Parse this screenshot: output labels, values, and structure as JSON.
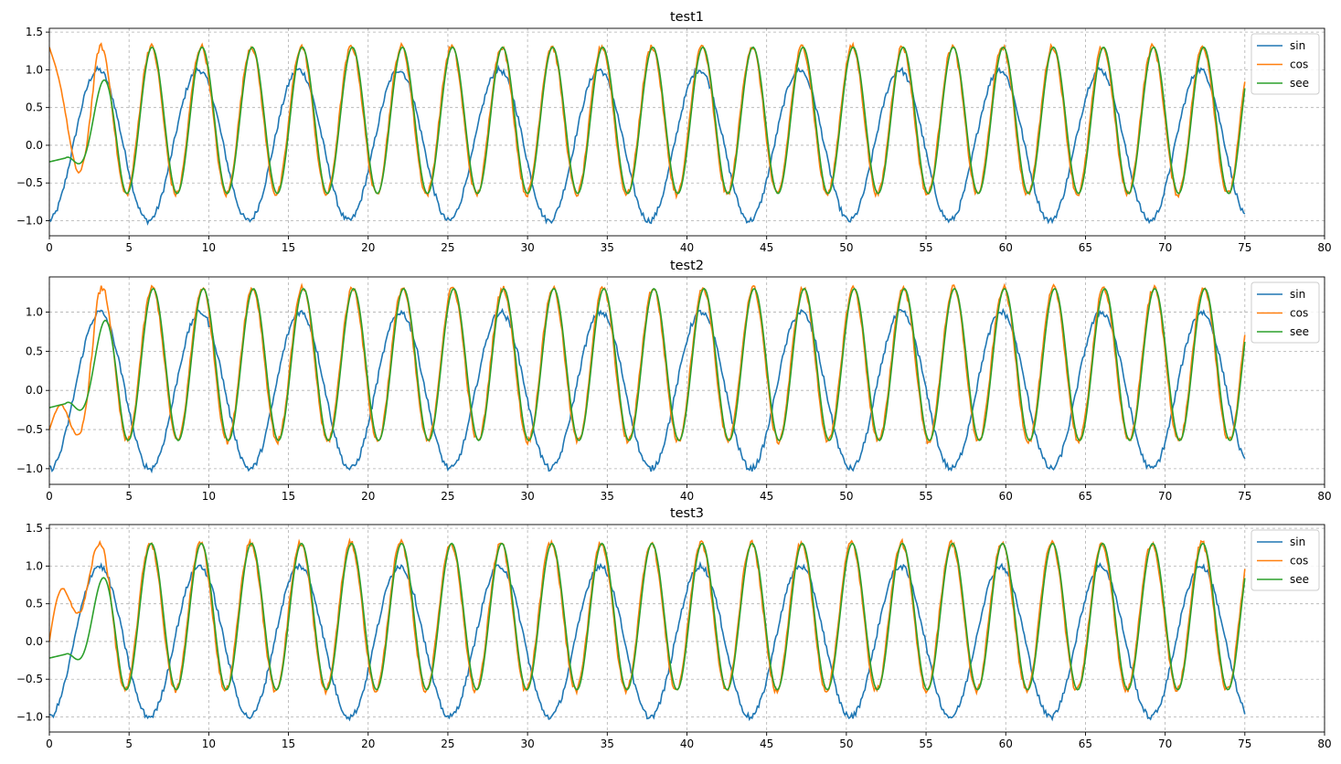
{
  "chart_data": [
    {
      "type": "line",
      "title": "test1",
      "xlim": [
        0,
        80
      ],
      "ylim": [
        -1.2,
        1.55
      ],
      "xticks": [
        0,
        5,
        10,
        15,
        20,
        25,
        30,
        35,
        40,
        45,
        50,
        55,
        60,
        65,
        70,
        75,
        80
      ],
      "yticks": [
        -1.0,
        -0.5,
        0.0,
        0.5,
        1.0,
        1.5
      ],
      "grid": true,
      "legend_position": "top-right",
      "series": [
        {
          "name": "sin",
          "color": "#1f77b4",
          "x_range": [
            0,
            75
          ],
          "approx_form": "sin(x - 1.5), amplitude 1.0, period 2π, noisy"
        },
        {
          "name": "cos",
          "color": "#ff7f0e",
          "x_range": [
            0,
            75
          ],
          "approx_form": "0.3 + cos(2x)-like oscillation between -0.7 and 1.3, noisy"
        },
        {
          "name": "see",
          "color": "#2ca02c",
          "x_range": [
            0,
            75
          ],
          "approx_form": "smooth oscillation between -0.65 and 1.3 tracking cos"
        }
      ]
    },
    {
      "type": "line",
      "title": "test2",
      "xlim": [
        0,
        80
      ],
      "ylim": [
        -1.2,
        1.45
      ],
      "xticks": [
        0,
        5,
        10,
        15,
        20,
        25,
        30,
        35,
        40,
        45,
        50,
        55,
        60,
        65,
        70,
        75,
        80
      ],
      "yticks": [
        -1.0,
        -0.5,
        0.0,
        0.5,
        1.0
      ],
      "grid": true,
      "legend_position": "top-right",
      "series": [
        {
          "name": "sin",
          "color": "#1f77b4",
          "x_range": [
            0,
            75
          ],
          "approx_form": "sin(x - 1.6), amplitude 1.0, noisy"
        },
        {
          "name": "cos",
          "color": "#ff7f0e",
          "x_range": [
            0,
            75
          ],
          "approx_form": "oscillation between -0.7 and 1.3, noisy"
        },
        {
          "name": "see",
          "color": "#2ca02c",
          "x_range": [
            0,
            75
          ],
          "approx_form": "smooth oscillation between -0.65 and 1.3"
        }
      ]
    },
    {
      "type": "line",
      "title": "test3",
      "xlim": [
        0,
        80
      ],
      "ylim": [
        -1.2,
        1.55
      ],
      "xticks": [
        0,
        5,
        10,
        15,
        20,
        25,
        30,
        35,
        40,
        45,
        50,
        55,
        60,
        65,
        70,
        75,
        80
      ],
      "yticks": [
        -1.0,
        -0.5,
        0.0,
        0.5,
        1.0,
        1.5
      ],
      "grid": true,
      "legend_position": "top-right",
      "series": [
        {
          "name": "sin",
          "color": "#1f77b4",
          "x_range": [
            0,
            75
          ],
          "approx_form": "sin(x - 1.5), amplitude 1.0, noisy"
        },
        {
          "name": "cos",
          "color": "#ff7f0e",
          "x_range": [
            0,
            75
          ],
          "approx_form": "oscillation between -0.7 and 1.3, noisy"
        },
        {
          "name": "see",
          "color": "#2ca02c",
          "x_range": [
            0,
            75
          ],
          "approx_form": "smooth oscillation between -0.65 and 1.3, small lump near x=1"
        }
      ]
    }
  ]
}
